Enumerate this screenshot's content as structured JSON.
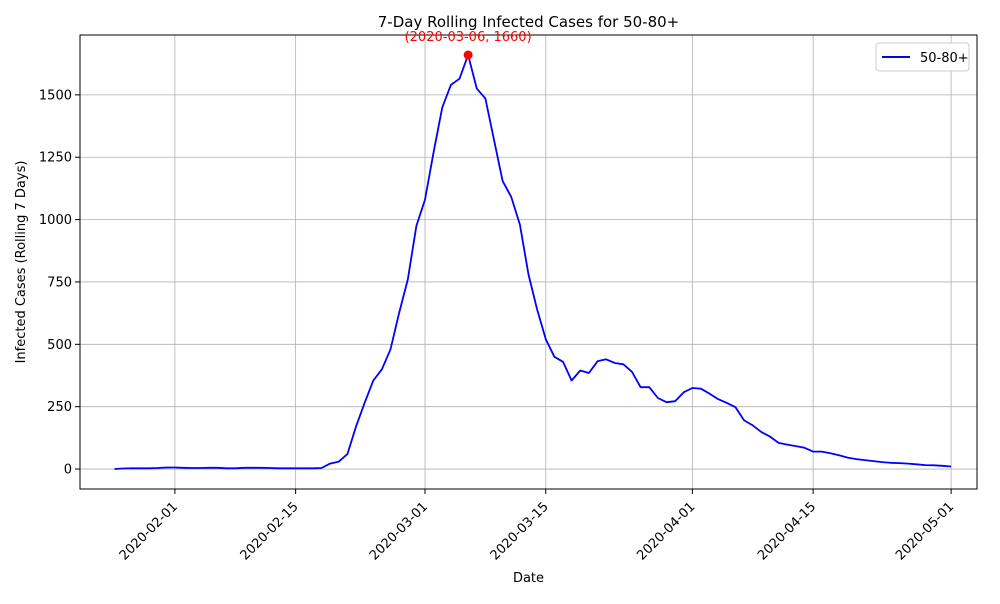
{
  "chart_data": {
    "type": "line",
    "title": "7-Day Rolling Infected Cases for 50-80+",
    "xlabel": "Date",
    "ylabel": "Infected Cases (Rolling 7 Days)",
    "x_ticks": [
      "2020-02-01",
      "2020-02-15",
      "2020-03-01",
      "2020-03-15",
      "2020-04-01",
      "2020-04-15",
      "2020-05-01"
    ],
    "y_ticks": [
      0,
      250,
      500,
      750,
      1000,
      1250,
      1500
    ],
    "xlim": [
      "2020-01-21",
      "2020-05-04"
    ],
    "ylim": [
      -80,
      1740
    ],
    "grid": true,
    "legend_position": "top-right",
    "series": [
      {
        "name": "50-80+",
        "color": "#0000ff",
        "x": [
          "2020-01-25",
          "2020-01-26",
          "2020-01-27",
          "2020-01-28",
          "2020-01-29",
          "2020-01-30",
          "2020-01-31",
          "2020-02-01",
          "2020-02-02",
          "2020-02-03",
          "2020-02-04",
          "2020-02-05",
          "2020-02-06",
          "2020-02-07",
          "2020-02-08",
          "2020-02-09",
          "2020-02-10",
          "2020-02-11",
          "2020-02-12",
          "2020-02-13",
          "2020-02-14",
          "2020-02-15",
          "2020-02-16",
          "2020-02-17",
          "2020-02-18",
          "2020-02-19",
          "2020-02-20",
          "2020-02-21",
          "2020-02-22",
          "2020-02-23",
          "2020-02-24",
          "2020-02-25",
          "2020-02-26",
          "2020-02-27",
          "2020-02-28",
          "2020-02-29",
          "2020-03-01",
          "2020-03-02",
          "2020-03-03",
          "2020-03-04",
          "2020-03-05",
          "2020-03-06",
          "2020-03-07",
          "2020-03-08",
          "2020-03-09",
          "2020-03-10",
          "2020-03-11",
          "2020-03-12",
          "2020-03-13",
          "2020-03-14",
          "2020-03-15",
          "2020-03-16",
          "2020-03-17",
          "2020-03-18",
          "2020-03-19",
          "2020-03-20",
          "2020-03-21",
          "2020-03-22",
          "2020-03-23",
          "2020-03-24",
          "2020-03-25",
          "2020-03-26",
          "2020-03-27",
          "2020-03-28",
          "2020-03-29",
          "2020-03-30",
          "2020-03-31",
          "2020-04-01",
          "2020-04-02",
          "2020-04-03",
          "2020-04-04",
          "2020-04-05",
          "2020-04-06",
          "2020-04-07",
          "2020-04-08",
          "2020-04-09",
          "2020-04-10",
          "2020-04-11",
          "2020-04-12",
          "2020-04-13",
          "2020-04-14",
          "2020-04-15",
          "2020-04-16",
          "2020-04-17",
          "2020-04-18",
          "2020-04-19",
          "2020-04-20",
          "2020-04-21",
          "2020-04-22",
          "2020-04-23",
          "2020-04-24",
          "2020-04-25",
          "2020-04-26",
          "2020-04-27",
          "2020-04-28",
          "2020-04-29",
          "2020-04-30",
          "2020-05-01"
        ],
        "values": [
          0,
          2,
          3,
          3,
          3,
          4,
          6,
          6,
          5,
          4,
          4,
          5,
          5,
          3,
          3,
          5,
          5,
          5,
          4,
          3,
          3,
          3,
          3,
          3,
          4,
          22,
          30,
          60,
          170,
          265,
          355,
          400,
          480,
          625,
          760,
          975,
          1080,
          1270,
          1450,
          1540,
          1565,
          1660,
          1525,
          1485,
          1320,
          1155,
          1090,
          980,
          780,
          640,
          520,
          450,
          430,
          355,
          395,
          385,
          432,
          440,
          425,
          420,
          390,
          328,
          328,
          285,
          268,
          272,
          308,
          325,
          322,
          302,
          280,
          265,
          248,
          195,
          175,
          148,
          130,
          105,
          98,
          92,
          85,
          70,
          70,
          63,
          55,
          46,
          40,
          36,
          32,
          28,
          25,
          24,
          22,
          19,
          16,
          15,
          13,
          10
        ]
      }
    ],
    "annotation": {
      "text": "(2020-03-06, 1660)",
      "x": "2020-03-06",
      "y": 1660,
      "color": "#ff0000"
    }
  }
}
